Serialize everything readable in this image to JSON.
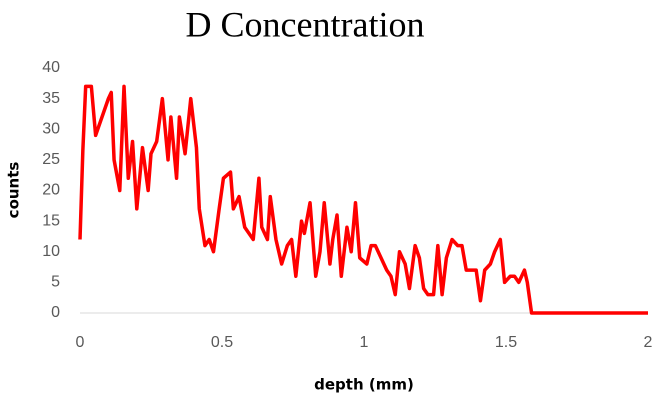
{
  "chart_data": {
    "type": "line",
    "title": "D Concentration",
    "x_label": "depth (mm)",
    "y_label": "counts",
    "x": [
      0,
      0.01,
      0.02,
      0.04,
      0.055,
      0.1,
      0.11,
      0.12,
      0.14,
      0.155,
      0.17,
      0.185,
      0.2,
      0.22,
      0.24,
      0.25,
      0.27,
      0.29,
      0.31,
      0.32,
      0.34,
      0.35,
      0.37,
      0.39,
      0.41,
      0.42,
      0.44,
      0.455,
      0.47,
      0.49,
      0.505,
      0.53,
      0.54,
      0.56,
      0.58,
      0.61,
      0.63,
      0.64,
      0.66,
      0.67,
      0.69,
      0.71,
      0.73,
      0.745,
      0.76,
      0.78,
      0.79,
      0.81,
      0.83,
      0.845,
      0.86,
      0.88,
      0.89,
      0.905,
      0.92,
      0.94,
      0.955,
      0.97,
      0.985,
      1.01,
      1.025,
      1.04,
      1.06,
      1.08,
      1.095,
      1.11,
      1.125,
      1.145,
      1.16,
      1.18,
      1.195,
      1.21,
      1.225,
      1.245,
      1.26,
      1.275,
      1.29,
      1.31,
      1.33,
      1.345,
      1.36,
      1.375,
      1.395,
      1.41,
      1.425,
      1.445,
      1.46,
      1.48,
      1.495,
      1.515,
      1.53,
      1.545,
      1.565,
      1.575,
      1.59,
      2
    ],
    "series": [
      {
        "name": "counts",
        "color": "#ff0000",
        "values": [
          12,
          26.5,
          37,
          37,
          29,
          35,
          36,
          25,
          20,
          37,
          22,
          28,
          17,
          27,
          20,
          26,
          28,
          35,
          25,
          32,
          22,
          32,
          26,
          35,
          27,
          17,
          11,
          12,
          10,
          17,
          22,
          23,
          17,
          19,
          14,
          12,
          22,
          14,
          12,
          19,
          12,
          8,
          11,
          12,
          6,
          15,
          13,
          18,
          6,
          10,
          18,
          8,
          12,
          16,
          6,
          14,
          10,
          18,
          9,
          8,
          11,
          11,
          9,
          7,
          6,
          3,
          10,
          8,
          4,
          11,
          9,
          4,
          3,
          3,
          11,
          3,
          9,
          12,
          11,
          11,
          7,
          7,
          7,
          2,
          7,
          8,
          10,
          12,
          5,
          6,
          6,
          5,
          7,
          5,
          0,
          0
        ]
      }
    ],
    "xlim": [
      0,
      2
    ],
    "xticks": [
      0,
      0.5,
      1,
      1.5,
      2
    ],
    "ylim": [
      0,
      40
    ],
    "yticks": [
      0,
      5,
      10,
      15,
      20,
      25,
      30,
      35,
      40
    ]
  }
}
